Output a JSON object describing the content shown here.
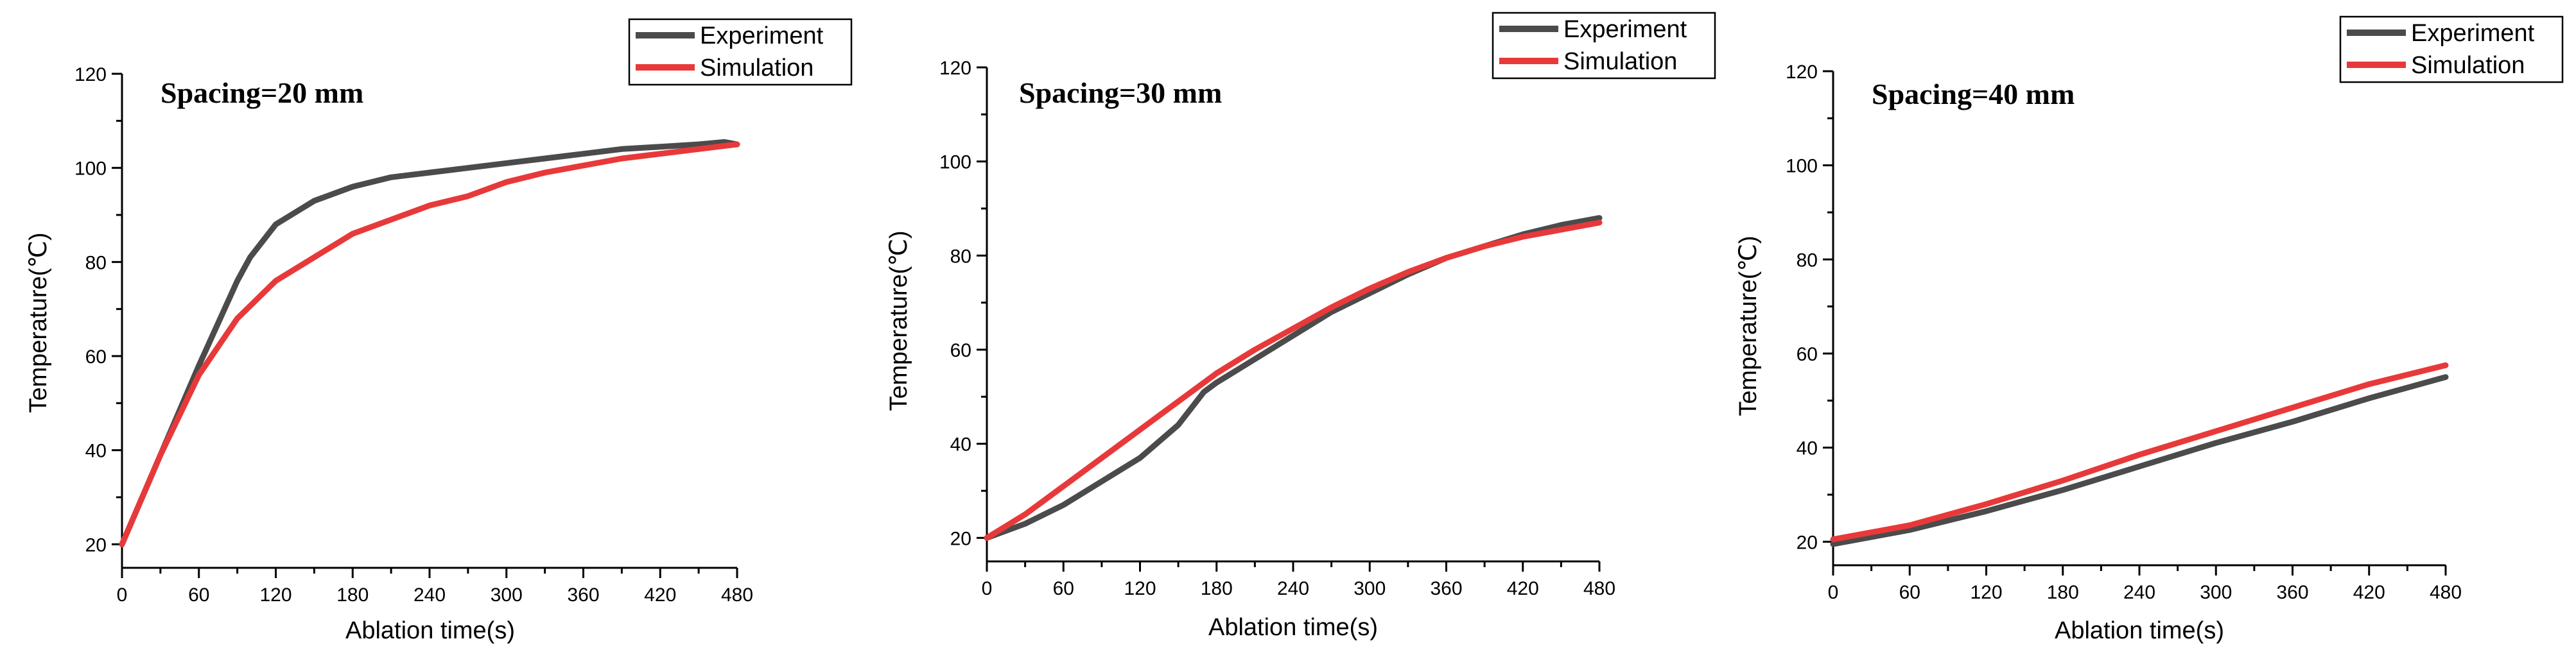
{
  "colors": {
    "experiment": "#4b4b4b",
    "simulation": "#e8393a"
  },
  "chart_data": [
    {
      "type": "line",
      "title": "Spacing=20 mm",
      "xlabel": "Ablation time(s)",
      "ylabel": "Temperature(℃)",
      "xlim": [
        0,
        480
      ],
      "ylim": [
        15,
        120
      ],
      "xticks": [
        0,
        60,
        120,
        180,
        240,
        300,
        360,
        420,
        480
      ],
      "yticks": [
        20,
        40,
        60,
        80,
        100,
        120
      ],
      "legend_position": "top-right",
      "series": [
        {
          "name": "Experiment",
          "key": "experiment",
          "x": [
            0,
            30,
            60,
            90,
            100,
            120,
            150,
            180,
            210,
            240,
            270,
            300,
            330,
            360,
            390,
            420,
            450,
            470,
            480
          ],
          "values": [
            20,
            39,
            58,
            76,
            81,
            88,
            93,
            96,
            98,
            99,
            100,
            101,
            102,
            103,
            104,
            104.5,
            105,
            105.5,
            105
          ]
        },
        {
          "name": "Simulation",
          "key": "simulation",
          "x": [
            0,
            30,
            60,
            90,
            120,
            150,
            180,
            210,
            240,
            270,
            300,
            330,
            360,
            390,
            420,
            450,
            480
          ],
          "values": [
            20,
            39,
            56,
            68,
            76,
            81,
            86,
            89,
            92,
            94,
            97,
            99,
            100.5,
            102,
            103,
            104,
            105
          ]
        }
      ]
    },
    {
      "type": "line",
      "title": "Spacing=30 mm",
      "xlabel": "Ablation time(s)",
      "ylabel": "Temperature(℃)",
      "xlim": [
        0,
        480
      ],
      "ylim": [
        15,
        120
      ],
      "xticks": [
        0,
        60,
        120,
        180,
        240,
        300,
        360,
        420,
        480
      ],
      "yticks": [
        20,
        40,
        60,
        80,
        100,
        120
      ],
      "legend_position": "top-right",
      "series": [
        {
          "name": "Experiment",
          "key": "experiment",
          "x": [
            0,
            30,
            60,
            90,
            120,
            150,
            170,
            180,
            210,
            240,
            270,
            300,
            330,
            360,
            390,
            420,
            450,
            480
          ],
          "values": [
            20,
            23,
            27,
            32,
            37,
            44,
            51,
            53,
            58,
            63,
            68,
            72,
            76,
            79.5,
            82,
            84.5,
            86.5,
            88
          ]
        },
        {
          "name": "Simulation",
          "key": "simulation",
          "x": [
            0,
            30,
            60,
            90,
            120,
            150,
            180,
            210,
            240,
            270,
            300,
            330,
            360,
            390,
            420,
            450,
            480
          ],
          "values": [
            20,
            25,
            31,
            37,
            43,
            49,
            55,
            60,
            64.5,
            69,
            73,
            76.5,
            79.5,
            82,
            84,
            85.5,
            87
          ]
        }
      ]
    },
    {
      "type": "line",
      "title": "Spacing=40 mm",
      "xlabel": "Ablation time(s)",
      "ylabel": "Temperature(℃)",
      "xlim": [
        0,
        480
      ],
      "ylim": [
        15,
        120
      ],
      "xticks": [
        0,
        60,
        120,
        180,
        240,
        300,
        360,
        420,
        480
      ],
      "yticks": [
        20,
        40,
        60,
        80,
        100,
        120
      ],
      "legend_position": "top-right",
      "series": [
        {
          "name": "Experiment",
          "key": "experiment",
          "x": [
            0,
            60,
            120,
            180,
            240,
            300,
            360,
            420,
            480
          ],
          "values": [
            19.5,
            22.5,
            26.5,
            31,
            36,
            41,
            45.5,
            50.5,
            55
          ]
        },
        {
          "name": "Simulation",
          "key": "simulation",
          "x": [
            0,
            60,
            120,
            180,
            240,
            300,
            360,
            420,
            480
          ],
          "values": [
            20.5,
            23.5,
            28,
            33,
            38.5,
            43.5,
            48.5,
            53.5,
            57.5
          ]
        }
      ]
    }
  ]
}
